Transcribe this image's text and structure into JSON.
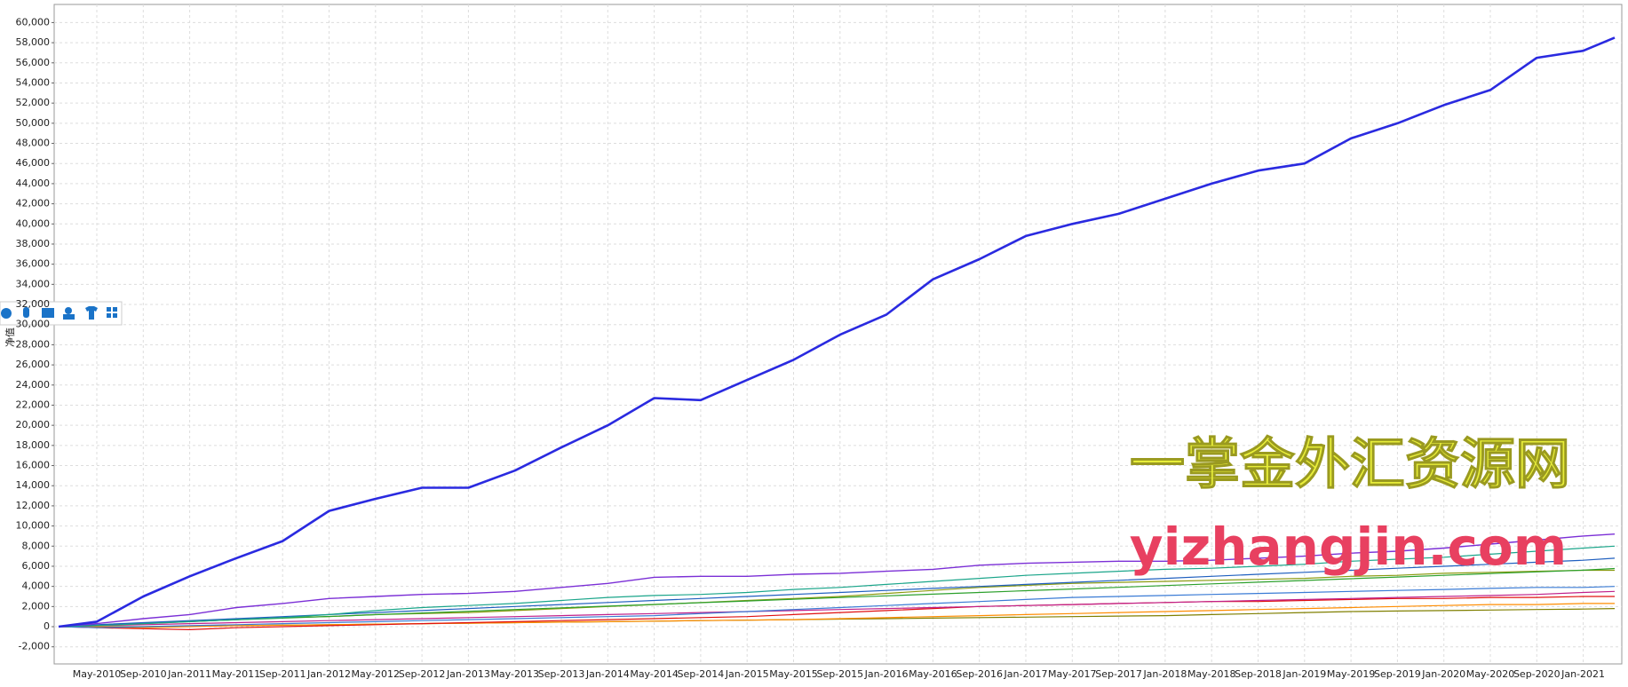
{
  "chart_data": {
    "type": "line",
    "y_label": "净值",
    "annotations": [
      "一掌金外汇资源网",
      "yizhangjin.com"
    ],
    "grid": true,
    "categories": [
      null,
      "May-2010",
      "Sep-2010",
      "Jan-2011",
      "May-2011",
      "Sep-2011",
      "Jan-2012",
      "May-2012",
      "Sep-2012",
      "Jan-2013",
      "May-2013",
      "Sep-2013",
      "Jan-2014",
      "May-2014",
      "Sep-2014",
      "Jan-2015",
      "May-2015",
      "Sep-2015",
      "Jan-2016",
      "May-2016",
      "Sep-2016",
      "Jan-2017",
      "May-2017",
      "Sep-2017",
      "Jan-2018",
      "May-2018",
      "Sep-2018",
      "Jan-2019",
      "May-2019",
      "Sep-2019",
      "Jan-2020",
      "May-2020",
      "Sep-2020",
      "Jan-2021",
      null
    ],
    "ylim": [
      -3700,
      61800
    ],
    "yticks": [
      {
        "value": -2000,
        "label": "-2,000"
      },
      0,
      {
        "value": 2000,
        "label": "2,000"
      },
      {
        "value": 4000,
        "label": "4,000"
      },
      {
        "value": 6000,
        "label": "6,000"
      },
      {
        "value": 8000,
        "label": "8,000"
      },
      {
        "value": 10000,
        "label": "10,000"
      },
      {
        "value": 12000,
        "label": "12,000"
      },
      {
        "value": 14000,
        "label": "14,000"
      },
      {
        "value": 16000,
        "label": "16,000"
      },
      {
        "value": 18000,
        "label": "18,000"
      },
      {
        "value": 20000,
        "label": "20,000"
      },
      {
        "value": 22000,
        "label": "22,000"
      },
      {
        "value": 24000,
        "label": "24,000"
      },
      {
        "value": 26000,
        "label": "26,000"
      },
      {
        "value": 28000,
        "label": "28,000"
      },
      {
        "value": 30000,
        "label": "30,000"
      },
      {
        "value": 32000,
        "label": "32,000"
      },
      {
        "value": 34000,
        "label": "34,000"
      },
      {
        "value": 36000,
        "label": "36,000"
      },
      {
        "value": 38000,
        "label": "38,000"
      },
      {
        "value": 40000,
        "label": "40,000"
      },
      {
        "value": 42000,
        "label": "42,000"
      },
      {
        "value": 44000,
        "label": "44,000"
      },
      {
        "value": 46000,
        "label": "46,000"
      },
      {
        "value": 48000,
        "label": "48,000"
      },
      {
        "value": 50000,
        "label": "50,000"
      },
      {
        "value": 52000,
        "label": "52,000"
      },
      {
        "value": 54000,
        "label": "54,000"
      },
      {
        "value": 56000,
        "label": "56,000"
      },
      {
        "value": 58000,
        "label": "58,000"
      },
      {
        "value": 60000,
        "label": "60,000"
      }
    ],
    "series": [
      {
        "color": "#7f7f00",
        "width": 1.2,
        "values": [
          0,
          0,
          0,
          50,
          100,
          150,
          200,
          250,
          300,
          350,
          400,
          450,
          500,
          550,
          600,
          650,
          700,
          750,
          800,
          850,
          900,
          950,
          1000,
          1050,
          1100,
          1200,
          1300,
          1400,
          1500,
          1550,
          1600,
          1650,
          1700,
          1750,
          1800
        ]
      },
      {
        "color": "#ff8c00",
        "width": 1.2,
        "values": [
          0,
          0,
          -100,
          0,
          100,
          150,
          200,
          250,
          300,
          350,
          400,
          450,
          500,
          550,
          600,
          650,
          700,
          800,
          900,
          1000,
          1100,
          1200,
          1300,
          1400,
          1500,
          1600,
          1700,
          1800,
          1900,
          2000,
          2100,
          2200,
          2200,
          2300,
          2300
        ]
      },
      {
        "color": "#e01010",
        "width": 1.2,
        "values": [
          0,
          -100,
          -200,
          -300,
          -100,
          0,
          100,
          200,
          300,
          400,
          500,
          600,
          700,
          800,
          900,
          1000,
          1200,
          1400,
          1600,
          1800,
          2000,
          2100,
          2200,
          2300,
          2400,
          2500,
          2500,
          2600,
          2700,
          2800,
          2800,
          2900,
          2900,
          3000,
          3000
        ]
      },
      {
        "color": "#c0208a",
        "width": 1.2,
        "values": [
          0,
          100,
          200,
          300,
          400,
          500,
          600,
          700,
          800,
          900,
          1000,
          1100,
          1200,
          1300,
          1400,
          1500,
          1600,
          1700,
          1800,
          1900,
          2000,
          2100,
          2200,
          2300,
          2400,
          2500,
          2600,
          2700,
          2800,
          2900,
          3000,
          3100,
          3200,
          3400,
          3500
        ]
      },
      {
        "color": "#3a7bd5",
        "width": 1.2,
        "values": [
          0,
          -100,
          0,
          100,
          200,
          300,
          400,
          500,
          600,
          700,
          800,
          900,
          1000,
          1100,
          1300,
          1500,
          1700,
          1900,
          2100,
          2300,
          2500,
          2700,
          2900,
          3000,
          3100,
          3200,
          3300,
          3400,
          3500,
          3600,
          3700,
          3800,
          3900,
          3900,
          4000
        ]
      },
      {
        "color": "#8a9a10",
        "width": 1.2,
        "values": [
          0,
          150,
          300,
          500,
          700,
          900,
          1000,
          1200,
          1300,
          1400,
          1600,
          1800,
          2000,
          2200,
          2400,
          2600,
          2800,
          3000,
          3300,
          3600,
          3900,
          4100,
          4300,
          4400,
          4500,
          4600,
          4700,
          4800,
          5000,
          5100,
          5300,
          5400,
          5500,
          5600,
          5600
        ]
      },
      {
        "color": "#2ca02c",
        "width": 1.2,
        "values": [
          0,
          170,
          340,
          510,
          680,
          850,
          1020,
          1190,
          1360,
          1530,
          1700,
          1870,
          2040,
          2210,
          2380,
          2550,
          2720,
          2890,
          3060,
          3230,
          3400,
          3570,
          3740,
          3910,
          4080,
          4250,
          4420,
          4590,
          4760,
          4930,
          5100,
          5270,
          5440,
          5610,
          5780
        ]
      },
      {
        "color": "#1f5fbf",
        "width": 1.2,
        "values": [
          0,
          200,
          400,
          600,
          800,
          1000,
          1200,
          1400,
          1600,
          1800,
          2000,
          2200,
          2400,
          2600,
          2800,
          3000,
          3200,
          3400,
          3600,
          3800,
          4000,
          4200,
          4400,
          4600,
          4800,
          5000,
          5200,
          5400,
          5600,
          5800,
          6000,
          6200,
          6400,
          6600,
          6800
        ]
      },
      {
        "color": "#1aa58a",
        "width": 1.2,
        "values": [
          0,
          100,
          300,
          500,
          700,
          900,
          1200,
          1600,
          1900,
          2100,
          2300,
          2600,
          2900,
          3100,
          3200,
          3400,
          3700,
          3900,
          4200,
          4500,
          4800,
          5100,
          5300,
          5500,
          5700,
          5800,
          6000,
          6200,
          6500,
          6700,
          6900,
          7200,
          7500,
          7800,
          8000
        ]
      },
      {
        "color": "#7b2fd6",
        "width": 1.4,
        "values": [
          0,
          300,
          800,
          1200,
          1900,
          2300,
          2800,
          3000,
          3200,
          3300,
          3500,
          3900,
          4300,
          4900,
          5000,
          5000,
          5200,
          5300,
          5500,
          5700,
          6100,
          6300,
          6400,
          6500,
          6500,
          6600,
          6800,
          7000,
          7300,
          7500,
          7800,
          8200,
          8600,
          9000,
          9200
        ]
      },
      {
        "color": "#2a2ae0",
        "width": 2.6,
        "values": [
          0,
          500,
          3000,
          5000,
          6800,
          8500,
          11500,
          12700,
          13800,
          13800,
          15500,
          17800,
          20000,
          22700,
          22500,
          24500,
          26500,
          29000,
          31000,
          34500,
          36500,
          38800,
          40000,
          41000,
          42500,
          44000,
          45300,
          46000,
          48500,
          50000,
          51800,
          53300,
          56500,
          57200,
          58500
        ]
      }
    ]
  }
}
